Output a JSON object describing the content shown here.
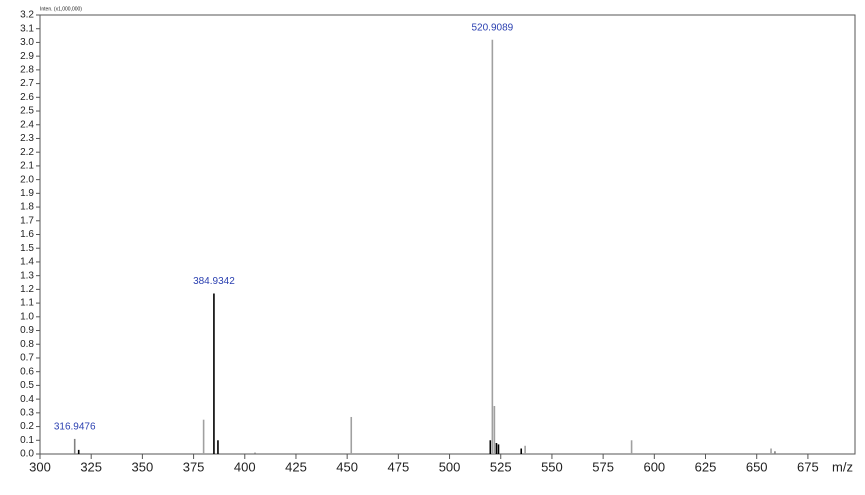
{
  "chart_data": {
    "type": "stem",
    "y_label": "Inten. (x1,000,000)",
    "x_label": "m/z",
    "xlim": [
      300,
      698
    ],
    "xticks": [
      300,
      325,
      350,
      375,
      400,
      425,
      450,
      475,
      500,
      525,
      550,
      575,
      600,
      625,
      650,
      675
    ],
    "ylim": [
      0,
      3.2
    ],
    "yticks": [
      {
        "value": 0,
        "label": "0.0"
      },
      0.1,
      0.2,
      0.3,
      0.4,
      0.5,
      0.6,
      0.7,
      0.8,
      0.9,
      {
        "value": 1,
        "label": "1.0"
      },
      1.1,
      1.2,
      1.3,
      1.4,
      1.5,
      1.6,
      1.7,
      1.8,
      1.9,
      {
        "value": 2,
        "label": "2.0"
      },
      2.1,
      2.2,
      2.3,
      2.4,
      2.5,
      2.6,
      2.7,
      2.8,
      2.9,
      {
        "value": 3,
        "label": "3.0"
      },
      3.1,
      3.2
    ],
    "x": [
      316.9476,
      318.9,
      379.9,
      384.9342,
      386.9,
      405,
      452,
      519.9,
      520.9089,
      521.9,
      522.9,
      523.9,
      535,
      536.9,
      588.9,
      657,
      658.9
    ],
    "values": [
      0.11,
      0.03,
      0.25,
      1.17,
      0.1,
      0.01,
      0.27,
      0.1,
      3.02,
      0.35,
      0.08,
      0.07,
      0.04,
      0.06,
      0.1,
      0.04,
      0.02
    ],
    "colors": [
      "#808080",
      "#000000",
      "#a0a0a0",
      "#000000",
      "#000000",
      "#808080",
      "#a0a0a0",
      "#000000",
      "#a0a0a0",
      "#a0a0a0",
      "#000000",
      "#000000",
      "#000000",
      "#a0a0a0",
      "#a0a0a0",
      "#a0a0a0",
      "#808080"
    ],
    "annotations": [
      {
        "label": "316.9476",
        "x": 316.9476
      },
      {
        "label": "384.9342",
        "x": 384.9342
      },
      {
        "label": "520.9089",
        "x": 520.9089
      }
    ]
  }
}
